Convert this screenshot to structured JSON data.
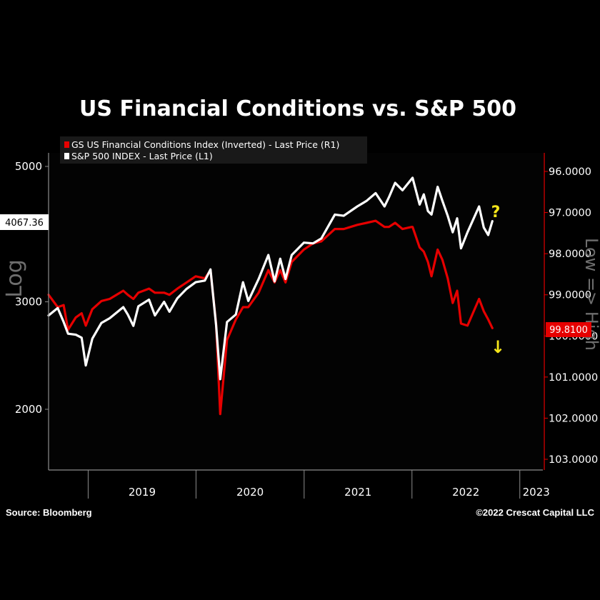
{
  "chart_data": {
    "type": "line",
    "title": "US Financial Conditions vs. S&P 500",
    "left_axis": {
      "label": "Log",
      "scale": "log",
      "ticks": [
        5000,
        3000,
        2000
      ],
      "tick_labels": [
        "5000",
        "3000",
        "2000"
      ],
      "last_price_label": "4067.36"
    },
    "right_axis": {
      "label": "Low => High",
      "inverted": true,
      "range": [
        95.7,
        103.05
      ],
      "ticks": [
        96,
        97,
        98,
        99,
        100,
        101,
        102,
        103
      ],
      "tick_labels": [
        "96.0000",
        "97.0000",
        "98.0000",
        "99.0000",
        "100.0000",
        "101.0000",
        "102.0000",
        "103.0000"
      ],
      "last_price_label": "99.8100"
    },
    "x_axis": {
      "range": [
        "2018-08-20",
        "2023-03-20"
      ],
      "ticks": [
        "2019-01-01",
        "2020-01-01",
        "2021-01-01",
        "2022-01-01",
        "2023-01-01"
      ],
      "tick_labels": [
        "2019",
        "2020",
        "2021",
        "2022",
        "2023"
      ]
    },
    "legend": {
      "placement": "top-left",
      "entries": [
        {
          "label": "GS US Financial Conditions Index (Inverted) - Last Price (R1)",
          "color": "#e60000"
        },
        {
          "label": "S&P 500 INDEX - Last Price (L1)",
          "color": "#ffffff"
        }
      ]
    },
    "series": [
      {
        "name": "S&P 500 INDEX - Last Price (L1)",
        "axis": "left",
        "color": "#ffffff",
        "points": [
          [
            "2018-08-20",
            2850
          ],
          [
            "2018-09-20",
            2930
          ],
          [
            "2018-10-10",
            2780
          ],
          [
            "2018-10-25",
            2660
          ],
          [
            "2018-11-20",
            2650
          ],
          [
            "2018-12-10",
            2620
          ],
          [
            "2018-12-24",
            2360
          ],
          [
            "2019-01-15",
            2610
          ],
          [
            "2019-02-15",
            2770
          ],
          [
            "2019-03-15",
            2820
          ],
          [
            "2019-04-30",
            2940
          ],
          [
            "2019-05-15",
            2860
          ],
          [
            "2019-06-03",
            2740
          ],
          [
            "2019-06-20",
            2950
          ],
          [
            "2019-07-26",
            3025
          ],
          [
            "2019-08-15",
            2850
          ],
          [
            "2019-09-15",
            3000
          ],
          [
            "2019-10-03",
            2890
          ],
          [
            "2019-10-30",
            3040
          ],
          [
            "2019-11-30",
            3150
          ],
          [
            "2019-12-31",
            3230
          ],
          [
            "2020-01-31",
            3250
          ],
          [
            "2020-02-19",
            3390
          ],
          [
            "2020-03-09",
            2750
          ],
          [
            "2020-03-23",
            2240
          ],
          [
            "2020-04-15",
            2780
          ],
          [
            "2020-05-15",
            2860
          ],
          [
            "2020-06-08",
            3230
          ],
          [
            "2020-06-26",
            3010
          ],
          [
            "2020-07-31",
            3270
          ],
          [
            "2020-09-02",
            3580
          ],
          [
            "2020-09-23",
            3240
          ],
          [
            "2020-10-12",
            3530
          ],
          [
            "2020-10-30",
            3270
          ],
          [
            "2020-11-20",
            3580
          ],
          [
            "2020-12-31",
            3750
          ],
          [
            "2021-01-31",
            3740
          ],
          [
            "2021-02-28",
            3810
          ],
          [
            "2021-04-15",
            4170
          ],
          [
            "2021-05-15",
            4150
          ],
          [
            "2021-06-30",
            4300
          ],
          [
            "2021-07-31",
            4390
          ],
          [
            "2021-08-31",
            4520
          ],
          [
            "2021-09-30",
            4300
          ],
          [
            "2021-10-15",
            4450
          ],
          [
            "2021-11-05",
            4700
          ],
          [
            "2021-11-30",
            4570
          ],
          [
            "2021-12-31",
            4770
          ],
          [
            "2022-01-03",
            4790
          ],
          [
            "2022-01-27",
            4330
          ],
          [
            "2022-02-10",
            4500
          ],
          [
            "2022-02-24",
            4225
          ],
          [
            "2022-03-08",
            4170
          ],
          [
            "2022-03-29",
            4630
          ],
          [
            "2022-04-14",
            4390
          ],
          [
            "2022-05-02",
            4150
          ],
          [
            "2022-05-19",
            3900
          ],
          [
            "2022-06-03",
            4110
          ],
          [
            "2022-06-16",
            3670
          ],
          [
            "2022-07-08",
            3900
          ],
          [
            "2022-08-16",
            4300
          ],
          [
            "2022-09-01",
            3970
          ],
          [
            "2022-09-16",
            3860
          ],
          [
            "2022-09-30",
            4067
          ]
        ]
      },
      {
        "name": "GS US Financial Conditions Index (Inverted) - Last Price (R1)",
        "axis": "right",
        "color": "#e60000",
        "points": [
          [
            "2018-08-20",
            99.0
          ],
          [
            "2018-09-20",
            99.3
          ],
          [
            "2018-10-10",
            99.25
          ],
          [
            "2018-10-25",
            99.85
          ],
          [
            "2018-11-20",
            99.55
          ],
          [
            "2018-12-10",
            99.45
          ],
          [
            "2018-12-24",
            99.75
          ],
          [
            "2019-01-15",
            99.35
          ],
          [
            "2019-02-15",
            99.15
          ],
          [
            "2019-03-15",
            99.1
          ],
          [
            "2019-04-30",
            98.9
          ],
          [
            "2019-05-15",
            99.0
          ],
          [
            "2019-06-03",
            99.1
          ],
          [
            "2019-06-20",
            98.95
          ],
          [
            "2019-07-26",
            98.85
          ],
          [
            "2019-08-15",
            98.95
          ],
          [
            "2019-09-15",
            98.95
          ],
          [
            "2019-10-03",
            99.0
          ],
          [
            "2019-10-30",
            98.85
          ],
          [
            "2019-11-30",
            98.7
          ],
          [
            "2019-12-31",
            98.55
          ],
          [
            "2020-01-31",
            98.6
          ],
          [
            "2020-02-19",
            98.4
          ],
          [
            "2020-03-09",
            99.7
          ],
          [
            "2020-03-23",
            101.9
          ],
          [
            "2020-04-15",
            100.1
          ],
          [
            "2020-05-15",
            99.6
          ],
          [
            "2020-06-08",
            99.3
          ],
          [
            "2020-06-26",
            99.3
          ],
          [
            "2020-07-31",
            98.95
          ],
          [
            "2020-09-02",
            98.4
          ],
          [
            "2020-09-23",
            98.7
          ],
          [
            "2020-10-12",
            98.4
          ],
          [
            "2020-10-30",
            98.7
          ],
          [
            "2020-11-20",
            98.2
          ],
          [
            "2020-12-31",
            97.9
          ],
          [
            "2021-01-31",
            97.75
          ],
          [
            "2021-02-28",
            97.7
          ],
          [
            "2021-04-15",
            97.4
          ],
          [
            "2021-05-15",
            97.4
          ],
          [
            "2021-06-30",
            97.3
          ],
          [
            "2021-07-31",
            97.25
          ],
          [
            "2021-08-31",
            97.2
          ],
          [
            "2021-09-30",
            97.35
          ],
          [
            "2021-10-15",
            97.35
          ],
          [
            "2021-11-05",
            97.25
          ],
          [
            "2021-11-30",
            97.4
          ],
          [
            "2021-12-31",
            97.35
          ],
          [
            "2022-01-03",
            97.35
          ],
          [
            "2022-01-27",
            97.85
          ],
          [
            "2022-02-10",
            97.95
          ],
          [
            "2022-02-24",
            98.2
          ],
          [
            "2022-03-08",
            98.55
          ],
          [
            "2022-03-29",
            97.9
          ],
          [
            "2022-04-14",
            98.15
          ],
          [
            "2022-05-02",
            98.6
          ],
          [
            "2022-05-19",
            99.2
          ],
          [
            "2022-06-03",
            98.9
          ],
          [
            "2022-06-16",
            99.7
          ],
          [
            "2022-07-08",
            99.75
          ],
          [
            "2022-08-16",
            99.1
          ],
          [
            "2022-09-01",
            99.4
          ],
          [
            "2022-09-16",
            99.6
          ],
          [
            "2022-09-30",
            99.81
          ]
        ]
      }
    ],
    "annotations": [
      {
        "text": "?",
        "color": "#f5e61a",
        "target": "S&P 500 INDEX - Last Price (L1)"
      },
      {
        "text": "↓",
        "color": "#f5e61a",
        "target": "GS US Financial Conditions Index (Inverted) - Last Price (R1)"
      }
    ]
  },
  "footer": {
    "source": "Source: Bloomberg",
    "copyright": "©2022 Crescat Capital LLC"
  },
  "colors": {
    "background": "#000000",
    "panel_background": "#050505",
    "fci": "#e60000",
    "spx": "#ffffff",
    "annotation": "#f5e61a",
    "axis_line": "#8c8c8c",
    "axis_text": "#ffffff",
    "right_axis_accent": "#e60000"
  }
}
